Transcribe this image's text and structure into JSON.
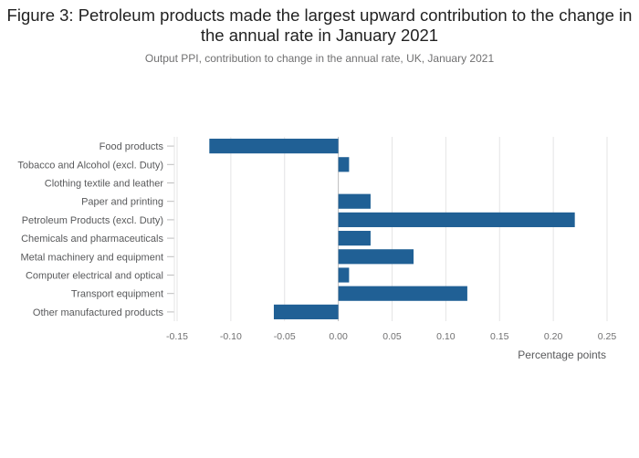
{
  "chart_data": {
    "type": "bar",
    "orientation": "horizontal",
    "title": "Figure 3: Petroleum products made the largest upward contribution to the change in the annual rate in January 2021",
    "subtitle": "Output PPI, contribution to change in the annual rate, UK, January 2021",
    "xlabel": "Percentage points",
    "ylabel": "",
    "categories": [
      "Food products",
      "Tobacco and Alcohol (excl. Duty)",
      "Clothing textile and leather",
      "Paper and printing",
      "Petroleum Products (excl. Duty)",
      "Chemicals and pharmaceuticals",
      "Metal machinery and equipment",
      "Computer electrical and optical",
      "Transport equipment",
      "Other manufactured products"
    ],
    "values": [
      -0.12,
      0.01,
      0.0,
      0.03,
      0.22,
      0.03,
      0.07,
      0.01,
      0.12,
      -0.06
    ],
    "xlim": [
      -0.15,
      0.25
    ],
    "xticks": [
      "-0.15",
      "-0.10",
      "-0.05",
      "0.00",
      "0.05",
      "0.10",
      "0.15",
      "0.20",
      "0.25"
    ],
    "grid": true,
    "bar_color": "#206095"
  }
}
